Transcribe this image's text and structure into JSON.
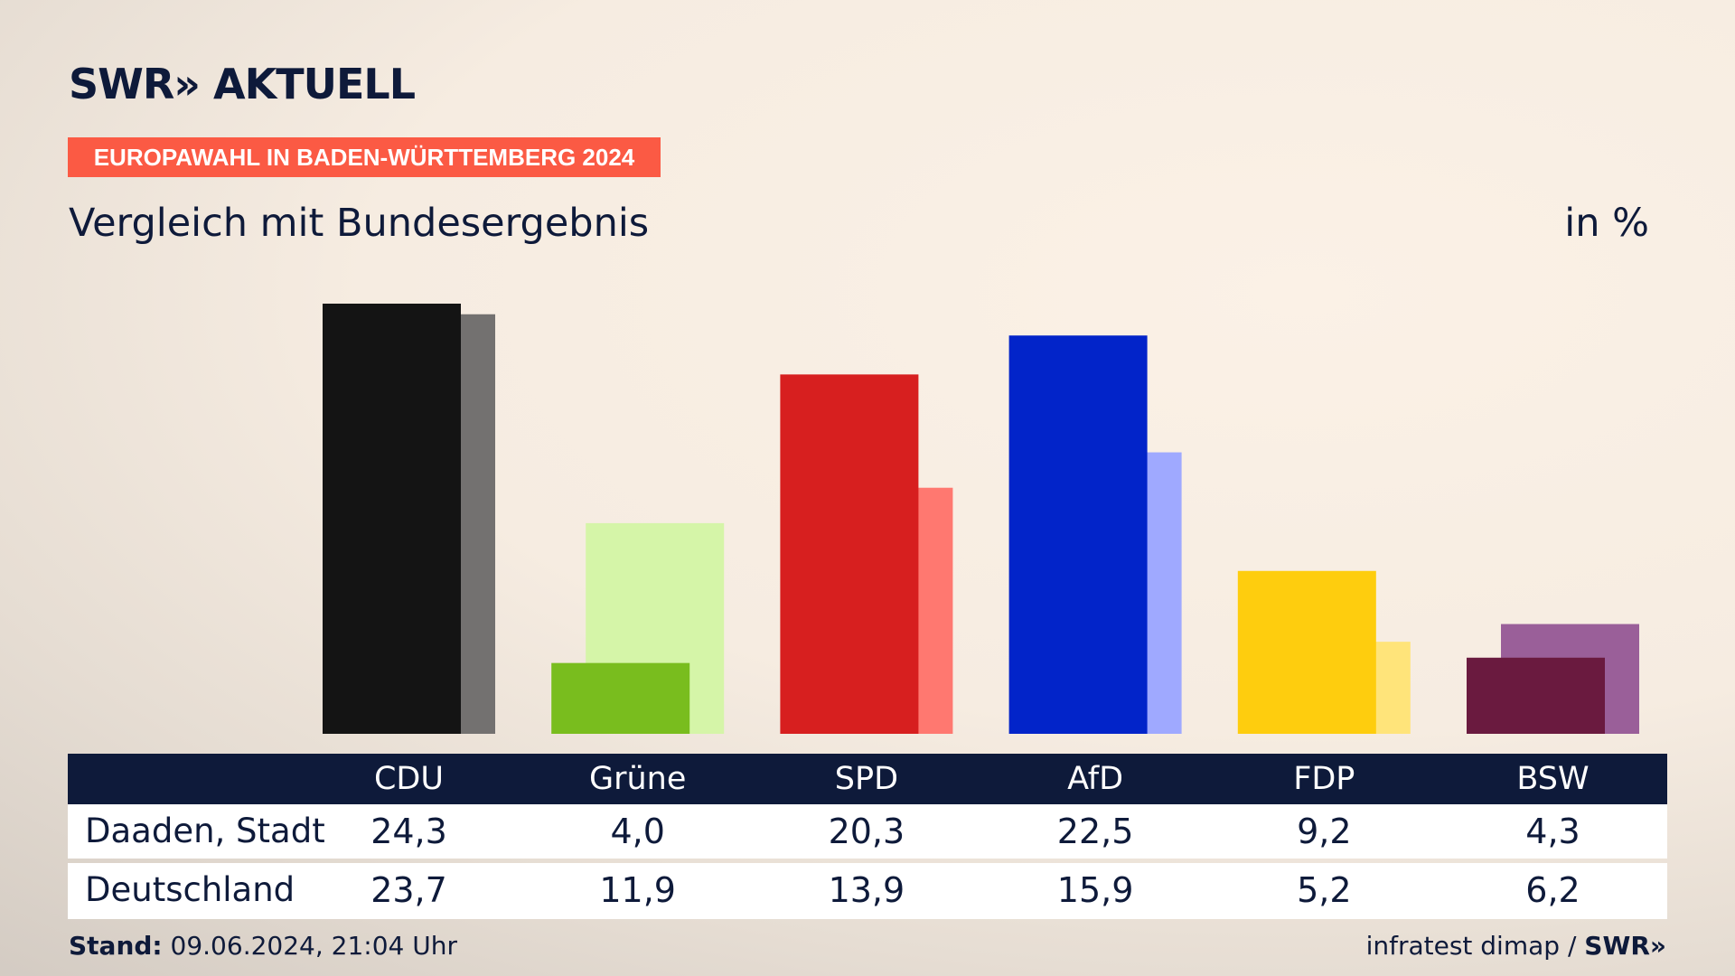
{
  "header": {
    "logo": "SWR» AKTUELL",
    "badge": "EUROPAWAHL IN BADEN-WÜRTTEMBERG 2024",
    "title": "Vergleich mit Bundesergebnis",
    "unit": "in %"
  },
  "table": {
    "rows": [
      {
        "label": "Daaden, Stadt",
        "values": [
          "24,3",
          "4,0",
          "20,3",
          "22,5",
          "9,2",
          "4,3"
        ]
      },
      {
        "label": "Deutschland",
        "values": [
          "23,7",
          "11,9",
          "13,9",
          "15,9",
          "5,2",
          "6,2"
        ]
      }
    ]
  },
  "footer": {
    "stand_label": "Stand:",
    "stand_value": "09.06.2024, 21:04 Uhr",
    "source": "infratest dimap /",
    "source_logo": "SWR»"
  },
  "chart_data": {
    "type": "bar",
    "categories": [
      "CDU",
      "Grüne",
      "SPD",
      "AfD",
      "FDP",
      "BSW"
    ],
    "series": [
      {
        "name": "Daaden, Stadt",
        "values": [
          24.3,
          4.0,
          20.3,
          22.5,
          9.2,
          4.3
        ]
      },
      {
        "name": "Deutschland",
        "values": [
          23.7,
          11.9,
          13.9,
          15.9,
          5.2,
          6.2
        ]
      }
    ],
    "colors_primary": [
      "#141414",
      "#79bd1e",
      "#d71f1f",
      "#0224c9",
      "#fecd0e",
      "#6a1a3f"
    ],
    "colors_secondary": [
      "#737170",
      "#d5f5a8",
      "#ff7870",
      "#9fa9ff",
      "#ffe47a",
      "#9a5f99"
    ],
    "ylim": [
      0,
      24.3
    ],
    "title": "Vergleich mit Bundesergebnis",
    "ylabel": "in %",
    "grid": false,
    "legend": "table-below"
  }
}
